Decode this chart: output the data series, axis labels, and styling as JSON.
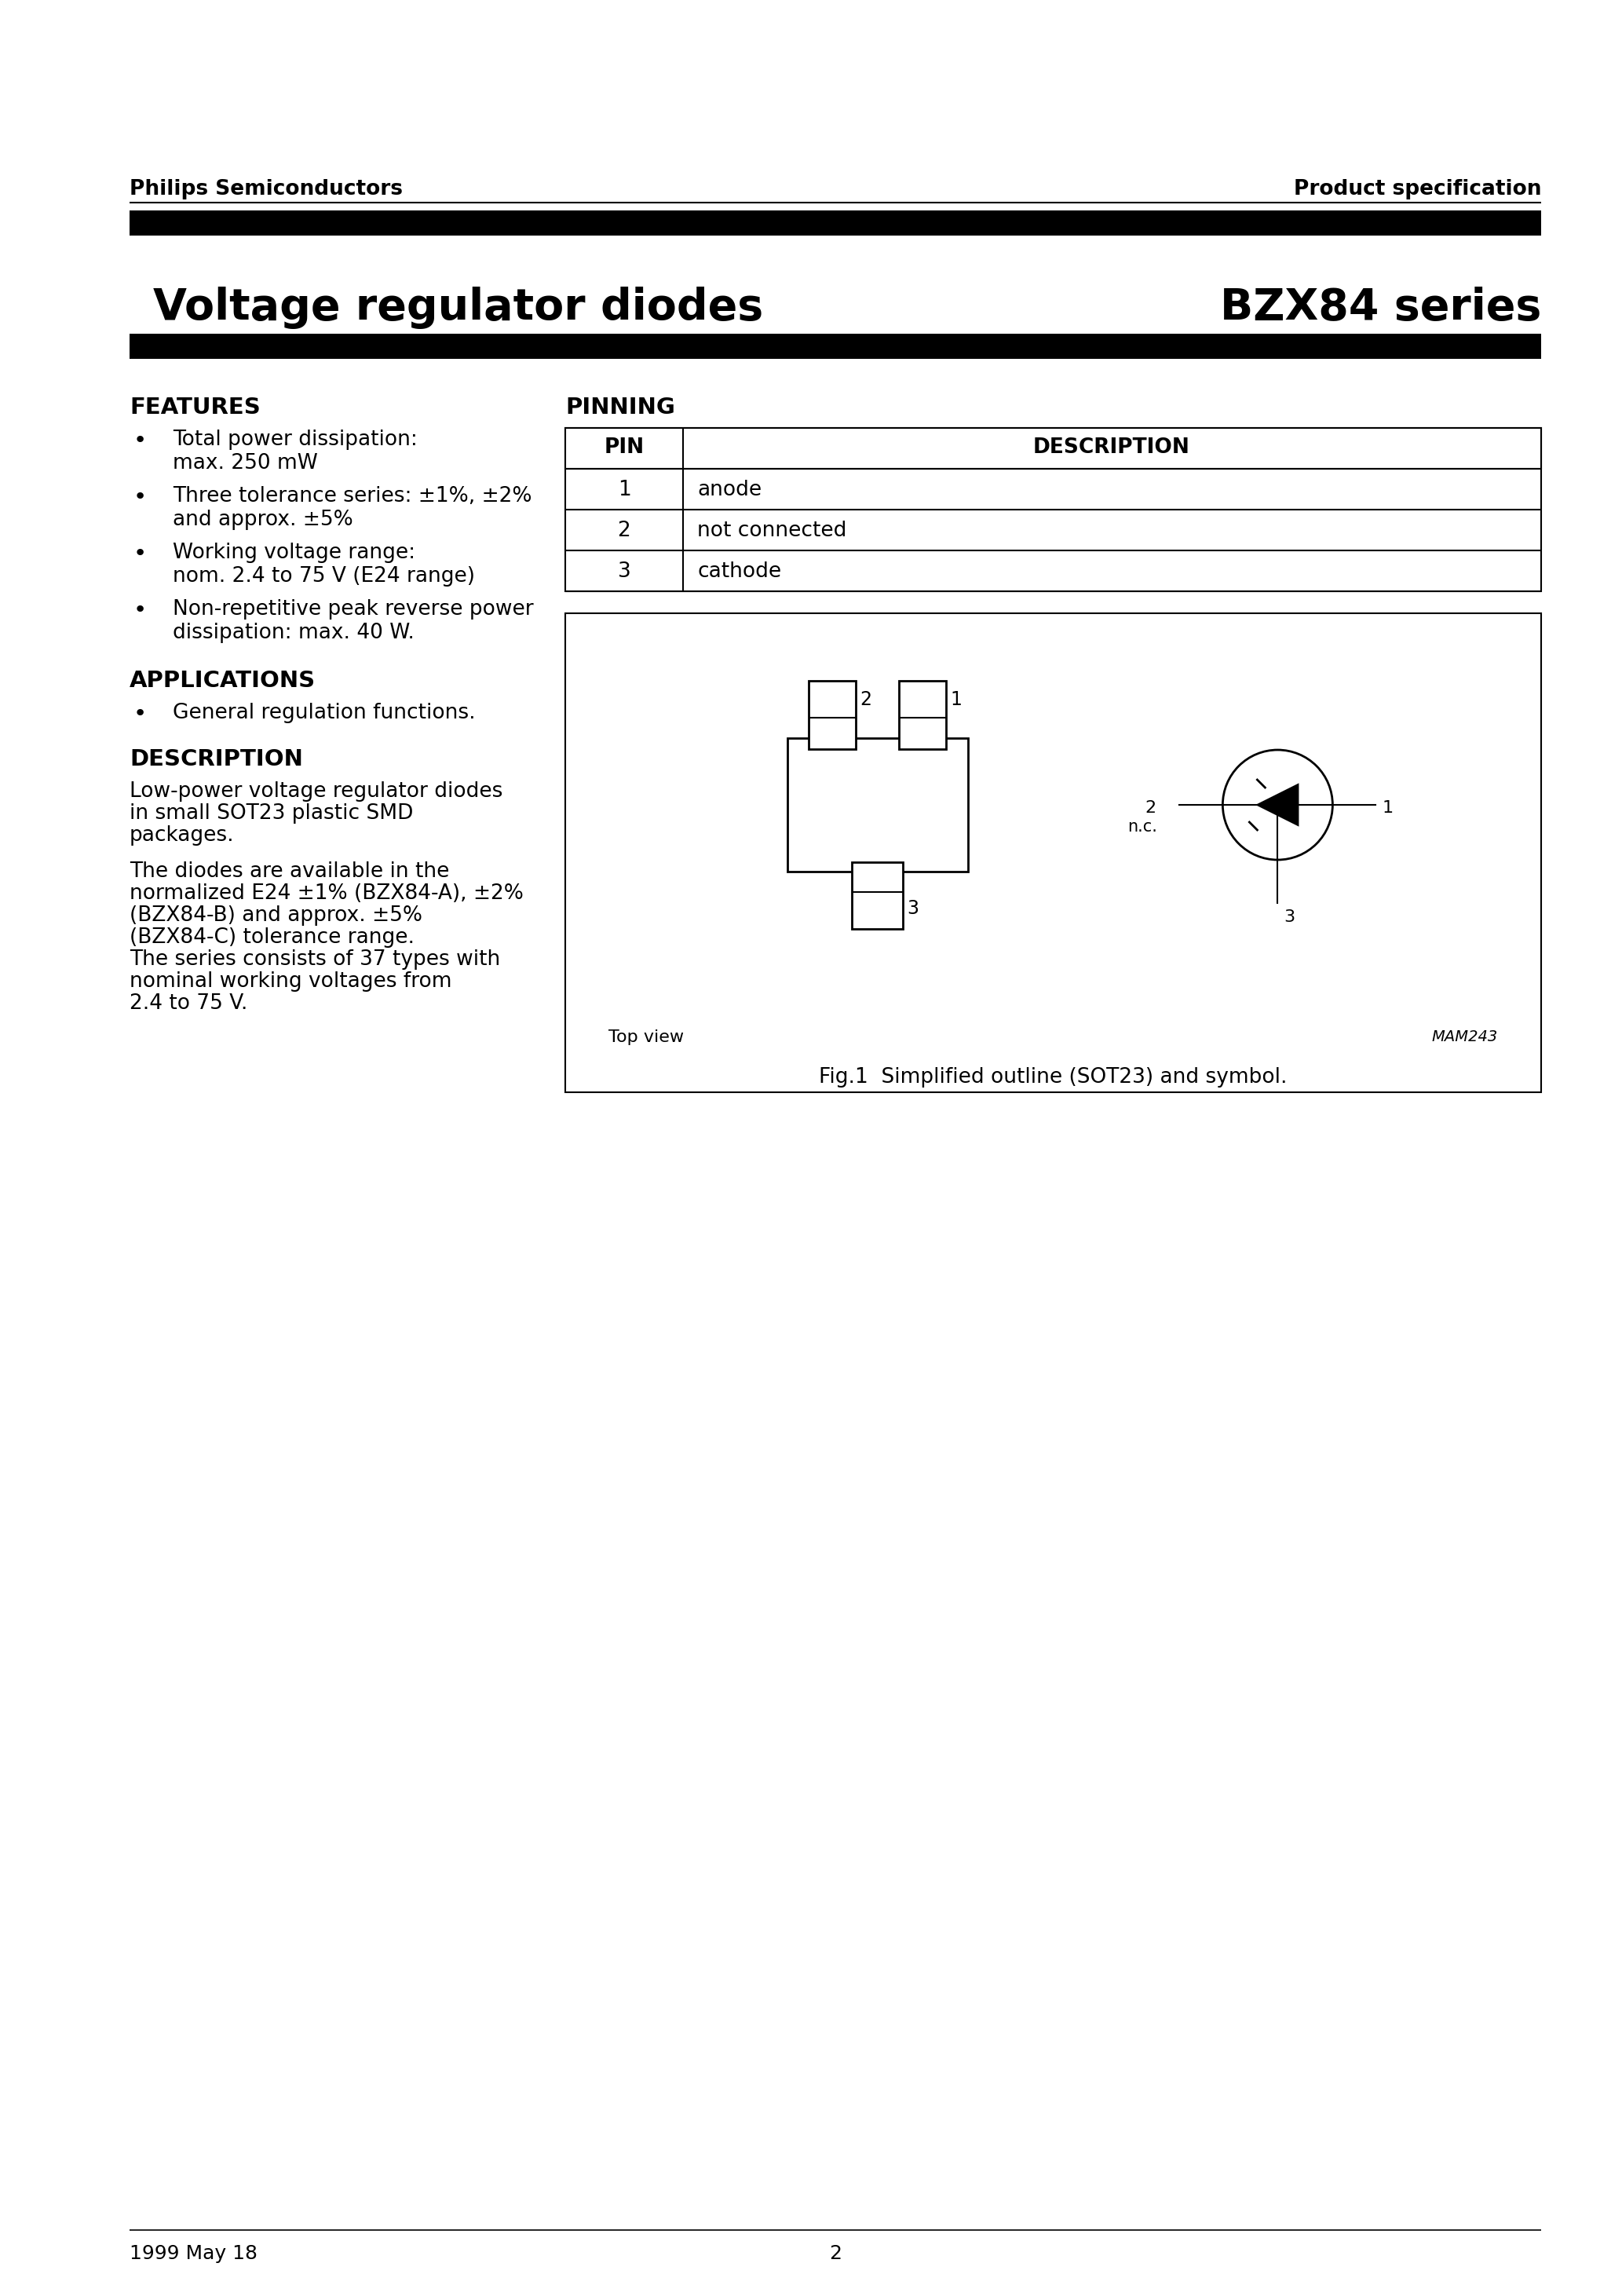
{
  "page_title_left": "Voltage regulator diodes",
  "page_title_right": "BZX84 series",
  "header_left": "Philips Semiconductors",
  "header_right": "Product specification",
  "footer_left": "1999 May 18",
  "footer_center": "2",
  "features_title": "FEATURES",
  "features_bullets": [
    [
      "Total power dissipation:",
      "max. 250 mW"
    ],
    [
      "Three tolerance series: ±1%, ±2%",
      "and approx. ±5%"
    ],
    [
      "Working voltage range:",
      "nom. 2.4 to 75 V (E24 range)"
    ],
    [
      "Non-repetitive peak reverse power",
      "dissipation: max. 40 W."
    ]
  ],
  "applications_title": "APPLICATIONS",
  "applications_bullets": [
    [
      "General regulation functions."
    ]
  ],
  "description_title": "DESCRIPTION",
  "description_para1": [
    "Low-power voltage regulator diodes",
    "in small SOT23 plastic SMD",
    "packages."
  ],
  "description_para2": [
    "The diodes are available in the",
    "normalized E24 ±1% (BZX84-A), ±2%",
    "(BZX84-B) and approx. ±5%",
    "(BZX84-C) tolerance range.",
    "The series consists of 37 types with",
    "nominal working voltages from",
    "2.4 to 75 V."
  ],
  "pinning_title": "PINNING",
  "pin_headers": [
    "PIN",
    "DESCRIPTION"
  ],
  "pin_rows": [
    [
      "1",
      "anode"
    ],
    [
      "2",
      "not connected"
    ],
    [
      "3",
      "cathode"
    ]
  ],
  "fig_caption": "Fig.1  Simplified outline (SOT23) and symbol.",
  "mam_label": "MAM243",
  "top_view_label": "Top view",
  "background_color": "#ffffff",
  "text_color": "#000000"
}
